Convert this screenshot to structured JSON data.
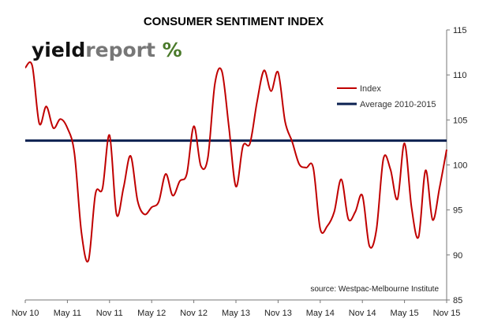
{
  "chart_data": {
    "type": "line",
    "title": "CONSUMER SENTIMENT INDEX",
    "source": "source: Westpac-Melbourne Institute",
    "logo": {
      "part1": "yield",
      "part2": "report",
      "part3": " %"
    },
    "x_tick_labels": [
      "Nov 10",
      "May 11",
      "Nov 11",
      "May 12",
      "Nov 12",
      "May 13",
      "Nov 13",
      "May 14",
      "Nov 14",
      "May 15",
      "Nov 15"
    ],
    "y_ticks": [
      85,
      90,
      95,
      100,
      105,
      110,
      115
    ],
    "ylim": [
      85,
      115
    ],
    "y_axis_position": "right",
    "grid": false,
    "legend_position": "top-right",
    "series": [
      {
        "name": "Index",
        "color": "#c00000",
        "x": [
          "Nov 10",
          "Dec 10",
          "Jan 11",
          "Feb 11",
          "Mar 11",
          "Apr 11",
          "May 11",
          "Jun 11",
          "Jul 11",
          "Aug 11",
          "Sep 11",
          "Oct 11",
          "Nov 11",
          "Dec 11",
          "Jan 12",
          "Feb 12",
          "Mar 12",
          "Apr 12",
          "May 12",
          "Jun 12",
          "Jul 12",
          "Aug 12",
          "Sep 12",
          "Oct 12",
          "Nov 12",
          "Dec 12",
          "Jan 13",
          "Feb 13",
          "Mar 13",
          "Apr 13",
          "May 13",
          "Jun 13",
          "Jul 13",
          "Aug 13",
          "Sep 13",
          "Oct 13",
          "Nov 13",
          "Dec 13",
          "Jan 14",
          "Feb 14",
          "Mar 14",
          "Apr 14",
          "May 14",
          "Jun 14",
          "Jul 14",
          "Aug 14",
          "Sep 14",
          "Oct 14",
          "Nov 14",
          "Dec 14",
          "Jan 15",
          "Feb 15",
          "Mar 15",
          "Apr 15",
          "May 15",
          "Jun 15",
          "Jul 15",
          "Aug 15",
          "Sep 15",
          "Oct 15",
          "Nov 15"
        ],
        "values": [
          110.8,
          111.0,
          104.6,
          106.5,
          104.1,
          105.1,
          104.1,
          101.3,
          92.5,
          89.4,
          96.8,
          97.4,
          103.3,
          94.5,
          97.5,
          101.0,
          96.0,
          94.5,
          95.3,
          95.9,
          99.0,
          96.6,
          98.2,
          99.0,
          104.3,
          99.9,
          100.8,
          109.0,
          110.4,
          104.2,
          97.6,
          102.1,
          102.4,
          107.0,
          110.5,
          108.2,
          110.3,
          104.8,
          102.6,
          100.1,
          99.7,
          99.7,
          92.9,
          93.2,
          94.8,
          98.4,
          94.0,
          94.8,
          96.6,
          91.0,
          92.8,
          100.7,
          99.5,
          96.2,
          102.4,
          95.3,
          92.0,
          99.4,
          93.9,
          97.5,
          101.7
        ]
      },
      {
        "name": "Average 2010-2015",
        "color": "#0b2050",
        "values": [
          102.7,
          102.7
        ]
      }
    ]
  }
}
